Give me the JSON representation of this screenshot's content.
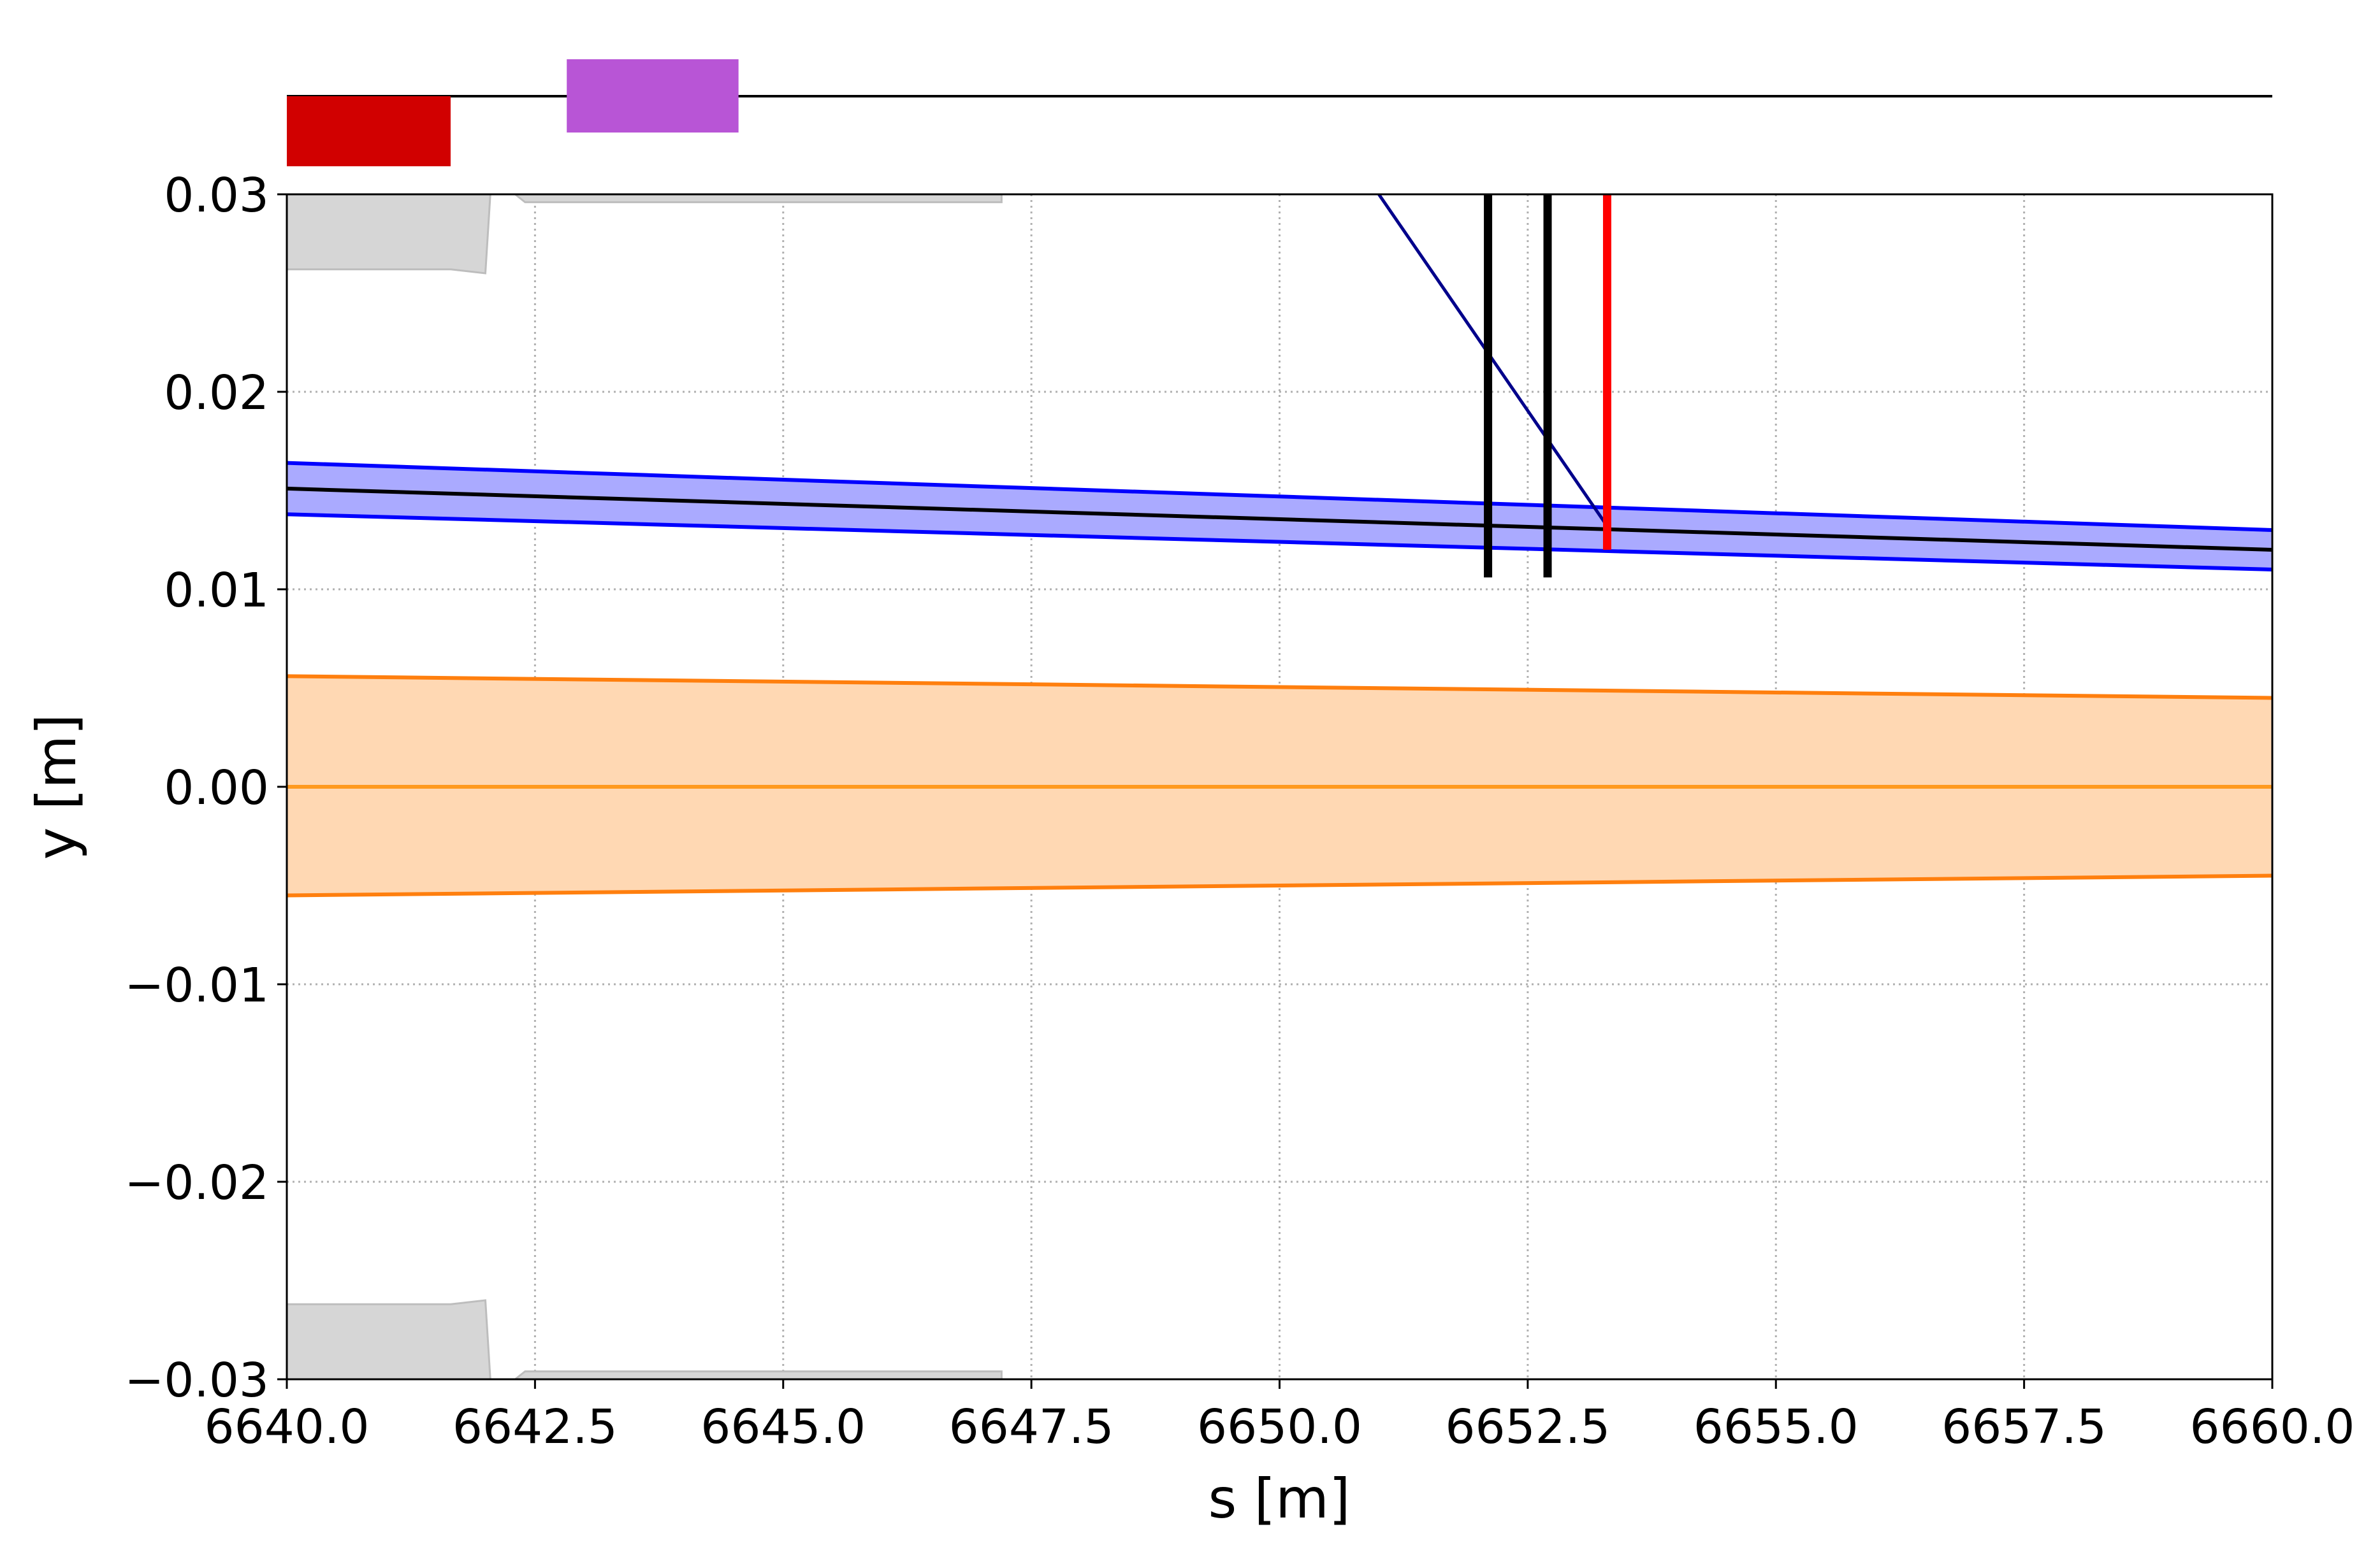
{
  "chart_data": {
    "type": "line",
    "xlabel": "s [m]",
    "ylabel": "y [m]",
    "xlim": [
      6640.0,
      6660.0
    ],
    "ylim": [
      -0.03,
      0.03
    ],
    "grid": true,
    "x_ticks": [
      {
        "value": 6640.0,
        "label": "6640.0"
      },
      {
        "value": 6642.5,
        "label": "6642.5"
      },
      {
        "value": 6645.0,
        "label": "6645.0"
      },
      {
        "value": 6647.5,
        "label": "6647.5"
      },
      {
        "value": 6650.0,
        "label": "6650.0"
      },
      {
        "value": 6652.5,
        "label": "6652.5"
      },
      {
        "value": 6655.0,
        "label": "6655.0"
      },
      {
        "value": 6657.5,
        "label": "6657.5"
      },
      {
        "value": 6660.0,
        "label": "6660.0"
      }
    ],
    "y_ticks": [
      {
        "value": 0.03,
        "label": "0.03"
      },
      {
        "value": 0.02,
        "label": "0.02"
      },
      {
        "value": 0.01,
        "label": "0.01"
      },
      {
        "value": 0.0,
        "label": "0.00"
      },
      {
        "value": -0.01,
        "label": "−0.01"
      },
      {
        "value": -0.02,
        "label": "−0.02"
      },
      {
        "value": -0.03,
        "label": "−0.03"
      }
    ],
    "bands": [
      {
        "color": "#0000ff",
        "fill": "#aaaaff",
        "center_color": "#000000",
        "x": [
          6640.0,
          6660.0
        ],
        "center": [
          0.0151,
          0.012
        ],
        "upper": [
          0.0164,
          0.013
        ],
        "lower": [
          0.0138,
          0.011
        ]
      },
      {
        "color": "#ff7f0e",
        "fill": "#ffd8b3",
        "center_color": "#ff9a1f",
        "x": [
          6640.0,
          6660.0
        ],
        "center": [
          0.0,
          0.0
        ],
        "upper": [
          0.0056,
          0.0045
        ],
        "lower": [
          -0.0055,
          -0.0045
        ]
      }
    ],
    "lines": [
      {
        "color": "#00008b",
        "x": [
          6651.0,
          6653.3
        ],
        "y": [
          0.03,
          0.0132
        ]
      }
    ],
    "vertical_markers": [
      {
        "s": 6652.1,
        "y_from": 0.0106,
        "y_to": 0.03,
        "color": "#000000"
      },
      {
        "s": 6652.7,
        "y_from": 0.0106,
        "y_to": 0.03,
        "color": "#000000"
      },
      {
        "s": 6653.3,
        "y_from": 0.012,
        "y_to": 0.03,
        "color": "#ff0000"
      }
    ],
    "apertures": [
      {
        "color": "#d6d6d6",
        "s": [
          6640.0,
          6641.65,
          6642.0,
          6642.05
        ],
        "y": [
          0.0262,
          0.0262,
          0.026,
          0.03
        ]
      },
      {
        "color": "#d6d6d6",
        "s": [
          6642.3,
          6642.4,
          6644.5,
          6647.2
        ],
        "y": [
          0.03,
          0.0296,
          0.0296,
          0.0296
        ]
      },
      {
        "color": "#d6d6d6",
        "s": [
          6640.0,
          6641.65,
          6642.0,
          6642.05
        ],
        "y": [
          -0.0262,
          -0.0262,
          -0.026,
          -0.03
        ]
      },
      {
        "color": "#d6d6d6",
        "s": [
          6642.3,
          6642.4,
          6644.5,
          6647.2
        ],
        "y": [
          -0.03,
          -0.0296,
          -0.0296,
          -0.0296
        ]
      }
    ],
    "lattice": [
      {
        "s_start": 6640.0,
        "s_end": 6641.65,
        "side": "below",
        "color": "#d10000"
      },
      {
        "s_start": 6642.82,
        "s_end": 6644.55,
        "side": "above",
        "color": "#b855d6"
      }
    ]
  }
}
